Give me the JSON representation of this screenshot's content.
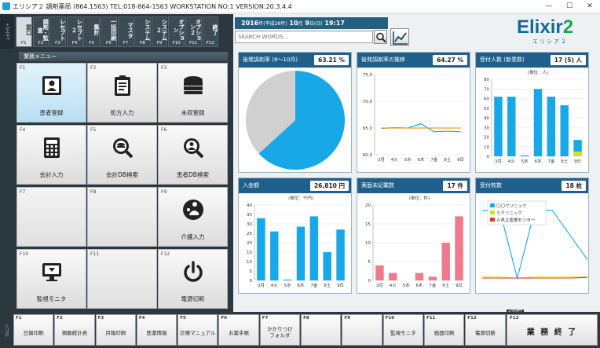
{
  "window": {
    "title": "エリシア２ 調剤薬局 (864.1563) TEL:018-864-1563 WORKSTATION NO:1 VERSION:20.3.4.4",
    "minimize": "—",
    "maximize": "☐",
    "close": "✕"
  },
  "top_fkeys": {
    "shift_label": "+SHIFT",
    "keys": [
      {
        "label": "窓口",
        "fn": "F1"
      },
      {
        "label": "調剤・監査",
        "fn": "F2"
      },
      {
        "label": "レセプト",
        "fn": "F3"
      },
      {
        "label": "レセプト２",
        "fn": "F4"
      },
      {
        "label": "集計",
        "fn": "F5"
      },
      {
        "label": "一括印刷",
        "fn": "F6"
      },
      {
        "label": "マスタ",
        "fn": "F7"
      },
      {
        "label": "システム",
        "fn": "F8"
      },
      {
        "label": "システム２",
        "fn": "F9"
      },
      {
        "label": "オプション",
        "fn": "F10"
      },
      {
        "label": "オプション２",
        "fn": "F11"
      },
      {
        "label": "終了",
        "fn": "F12"
      }
    ]
  },
  "menu": {
    "header": "業務メニュー",
    "tiles": [
      {
        "fn": "F1",
        "label": "患者登録",
        "icon": "patient-card-icon"
      },
      {
        "fn": "F2",
        "label": "処方入力",
        "icon": "clipboard-icon"
      },
      {
        "fn": "F3",
        "label": "未収登録",
        "icon": "coins-icon"
      },
      {
        "fn": "F4",
        "label": "会計入力",
        "icon": "calculator-icon"
      },
      {
        "fn": "F5",
        "label": "会計DB検索",
        "icon": "coin-search-icon"
      },
      {
        "fn": "F6",
        "label": "患者DB検索",
        "icon": "person-search-icon"
      },
      {
        "fn": "F7",
        "label": "",
        "icon": ""
      },
      {
        "fn": "F8",
        "label": "",
        "icon": ""
      },
      {
        "fn": "F9",
        "label": "介護入力",
        "icon": "care-icon"
      },
      {
        "fn": "F10",
        "label": "監視モニタ",
        "icon": "monitor-icon"
      },
      {
        "fn": "F11",
        "label": "",
        "icon": ""
      },
      {
        "fn": "F12",
        "label": "電源切断",
        "icon": "power-icon"
      }
    ]
  },
  "datebar": {
    "year": "2016",
    "era_prefix": "年(",
    "era": "平成28年",
    "era_suffix": ")",
    "month": "10",
    "month_unit": "月",
    "day": "9",
    "day_unit": "日(",
    "weekday": "日",
    "weekday_suffix": ")",
    "time": "19:17"
  },
  "search": {
    "placeholder": "SEARCH WORDS...",
    "search_icon": "search-icon",
    "chart_icon": "line-chart-icon"
  },
  "logo": {
    "text": "Elixir",
    "num": "2",
    "sub": "エリシア２"
  },
  "colors": {
    "header": "#1f5f8b",
    "blue": "#18a8e8",
    "gray": "#d0d0d0",
    "orange": "#e8a21c",
    "pink": "#ef7a8c",
    "yellow": "#d4e020",
    "red": "#e0362c"
  },
  "cards": {
    "rate": {
      "title": "後発調剤率 (8〜10月)",
      "value": "63.21 %"
    },
    "trend": {
      "title": "後発調剤率の推移",
      "value": "64.27 %"
    },
    "reception": {
      "title": "受付人数 (新患数)",
      "value": "17 (5) 人"
    },
    "deposit": {
      "title": "入金額",
      "value": "26,810 円"
    },
    "unrecorded": {
      "title": "薬歴未記載数",
      "value": "17 件"
    },
    "sheets": {
      "title": "受付枚数",
      "value": "18 枚"
    }
  },
  "chart_data": [
    {
      "type": "pie",
      "title": "後発調剤率 (8〜10月)",
      "values": [
        63.21,
        36.79
      ]
    },
    {
      "type": "line",
      "title": "後発調剤率の推移",
      "categories": [
        "3月",
        "4火",
        "5水",
        "6木",
        "7金",
        "8土",
        "9日"
      ],
      "ylim": [
        60,
        75
      ],
      "yticks": [
        "75.0",
        "70.0",
        "65.0",
        "60.0"
      ],
      "series": [
        {
          "values": [
            64.9,
            65.1,
            65.0,
            65.8,
            64.3,
            64.4,
            64.3
          ]
        },
        {
          "values": [
            65.0,
            65.0,
            65.0,
            65.0,
            65.0,
            65.0,
            65.0
          ]
        }
      ]
    },
    {
      "type": "bar",
      "title": "受付人数 (新患数)",
      "unit": "(単位：人)",
      "categories": [
        "3月",
        "4火",
        "5水",
        "6木",
        "7金",
        "8土",
        "9日"
      ],
      "ylim": [
        0,
        80
      ],
      "yticks": [
        "80",
        "70",
        "60",
        "50",
        "40",
        "30",
        "20",
        "10",
        "0"
      ],
      "values": [
        62,
        62,
        1,
        70,
        62,
        53,
        17
      ],
      "new_values": [
        0,
        0,
        0,
        0,
        0,
        0,
        5
      ]
    },
    {
      "type": "bar",
      "title": "入金額",
      "unit": "(単位：千円)",
      "categories": [
        "3月",
        "4火",
        "5水",
        "6木",
        "7金",
        "8土",
        "9日"
      ],
      "ylim": [
        0,
        40
      ],
      "yticks": [
        "40",
        "35",
        "30",
        "25",
        "20",
        "15",
        "10",
        "5",
        "0"
      ],
      "values": [
        33,
        26,
        0.5,
        28.5,
        34,
        15,
        27
      ]
    },
    {
      "type": "bar",
      "title": "薬歴未記載数",
      "unit": "(単位：件)",
      "categories": [
        "3月",
        "4火",
        "5水",
        "6木",
        "7金",
        "8土",
        "9日"
      ],
      "ylim": [
        0,
        20
      ],
      "yticks": [
        "20",
        "15",
        "10",
        "5",
        "0"
      ],
      "values": [
        4,
        2,
        0,
        2,
        1,
        10,
        17
      ]
    },
    {
      "type": "line",
      "title": "受付枚数",
      "legend": [
        "〇〇クリニック",
        "Ｓクリニック",
        "Ａ県立医療センター"
      ],
      "series": [
        {
          "name": "〇〇クリニック",
          "values": [
            55,
            55,
            0,
            55,
            55,
            35,
            15
          ]
        },
        {
          "name": "Ｓクリニック",
          "values": [
            1,
            1,
            0,
            1,
            1,
            1,
            1
          ]
        },
        {
          "name": "Ａ県立医療センター",
          "values": [
            0,
            0,
            0,
            0,
            0,
            0,
            0.5
          ]
        }
      ]
    }
  ],
  "bottom_fkeys": {
    "shift_label": "+CTRL",
    "shift_tag": "+SHIFT",
    "keys": [
      {
        "fn": "F1",
        "label": "日報印刷"
      },
      {
        "fn": "F2",
        "label": "頓服統計表"
      },
      {
        "fn": "F3",
        "label": "月報印刷"
      },
      {
        "fn": "F4",
        "label": "医薬情報"
      },
      {
        "fn": "F5",
        "label": "診療マニュアル"
      },
      {
        "fn": "F6",
        "label": "お薬手帳"
      },
      {
        "fn": "F7",
        "label": "かかりつけ\nフォルダ"
      },
      {
        "fn": "F8",
        "label": ""
      },
      {
        "fn": "F9",
        "label": ""
      },
      {
        "fn": "F10",
        "label": "監視モニタ"
      },
      {
        "fn": "F11",
        "label": "画面印刷"
      },
      {
        "fn": "F12",
        "label": "電源切断"
      }
    ],
    "end": {
      "fn": "F12",
      "label": "業 務 終 了"
    }
  }
}
